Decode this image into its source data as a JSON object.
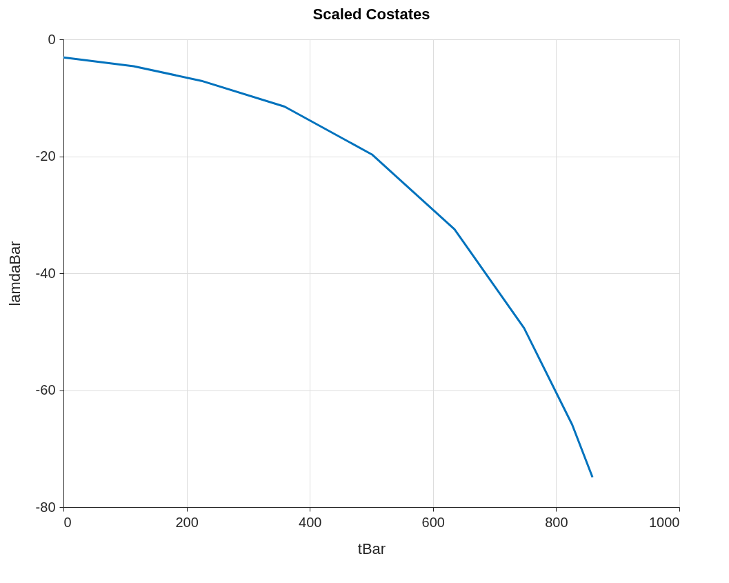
{
  "chart_data": {
    "type": "line",
    "title": "Scaled Costates",
    "xlabel": "tBar",
    "ylabel": "lamdaBar",
    "x": [
      0,
      114,
      224,
      359,
      501,
      635,
      748,
      826,
      859
    ],
    "series": [
      {
        "color": "#0072bd",
        "values": [
          -3.1,
          -4.6,
          -7.1,
          -11.5,
          -19.7,
          -32.5,
          -49.4,
          -65.9,
          -74.9
        ]
      }
    ],
    "xlim": [
      0,
      1000
    ],
    "xticks": [
      0,
      200,
      400,
      600,
      800,
      1000
    ],
    "ylim": [
      -80,
      0
    ],
    "yticks": [
      -80,
      -60,
      -40,
      -20,
      0
    ],
    "grid": true,
    "marker": "none",
    "line_style": "solid"
  }
}
